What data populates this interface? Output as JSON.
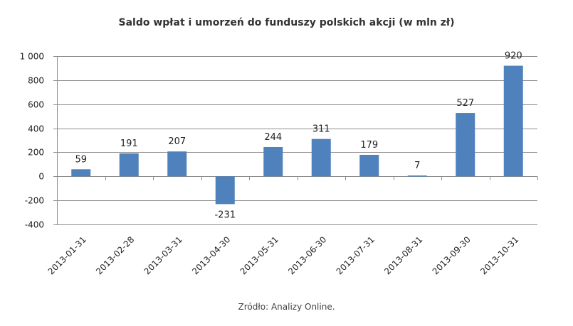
{
  "chart_data": {
    "type": "bar",
    "title": "Saldo wpłat i umorzeń do funduszy polskich akcji (w mln zł)",
    "source": "Zródło: Analizy Online.",
    "categories": [
      "2013-01-31",
      "2013-02-28",
      "2013-03-31",
      "2013-04-30",
      "2013-05-31",
      "2013-06-30",
      "2013-07-31",
      "2013-08-31",
      "2013-09-30",
      "2013-10-31"
    ],
    "values": [
      59,
      191,
      207,
      -231,
      244,
      311,
      179,
      7,
      527,
      920
    ],
    "data_labels": [
      "59",
      "191",
      "207",
      "-231",
      "244",
      "311",
      "179",
      "7",
      "527",
      "920"
    ],
    "ylim": [
      -400,
      1000
    ],
    "yticks": [
      -400,
      -200,
      0,
      200,
      400,
      600,
      800,
      1000
    ],
    "ytick_labels": [
      "-400",
      "-200",
      "0",
      "200",
      "400",
      "600",
      "800",
      "1 000"
    ],
    "grid": true,
    "legend": false,
    "bar_color": "#4F81BD",
    "grid_color": "#8c8c8c"
  }
}
